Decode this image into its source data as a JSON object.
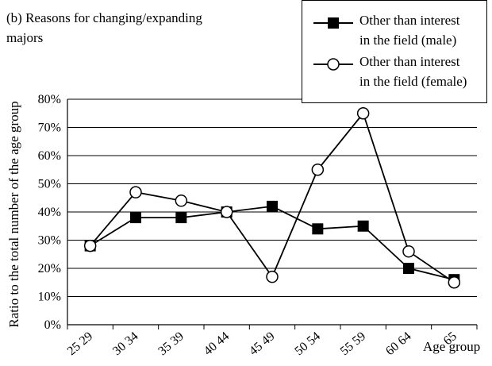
{
  "chart_data": {
    "type": "line",
    "title_lines": [
      "(b) Reasons for changing/expanding",
      "majors"
    ],
    "xlabel": "Age group",
    "ylabel": "Ratio to the total number of the age group",
    "categories": [
      "25 29",
      "30 34",
      "35 39",
      "40 44",
      "45 49",
      "50 54",
      "55 59",
      "60 64",
      "65"
    ],
    "yticks": [
      "0%",
      "10%",
      "20%",
      "30%",
      "40%",
      "50%",
      "60%",
      "70%",
      "80%"
    ],
    "ylim": [
      0,
      80
    ],
    "grid": true,
    "legend_position": "top-right",
    "series": [
      {
        "name_lines": [
          "Other than interest",
          "in the field (male)"
        ],
        "marker": "filled-square",
        "values": [
          28,
          38,
          38,
          40,
          42,
          34,
          35,
          20,
          16
        ]
      },
      {
        "name_lines": [
          "Other than interest",
          "in the field (female)"
        ],
        "marker": "open-circle",
        "values": [
          28,
          47,
          44,
          40,
          17,
          55,
          75,
          26,
          15
        ]
      }
    ]
  }
}
